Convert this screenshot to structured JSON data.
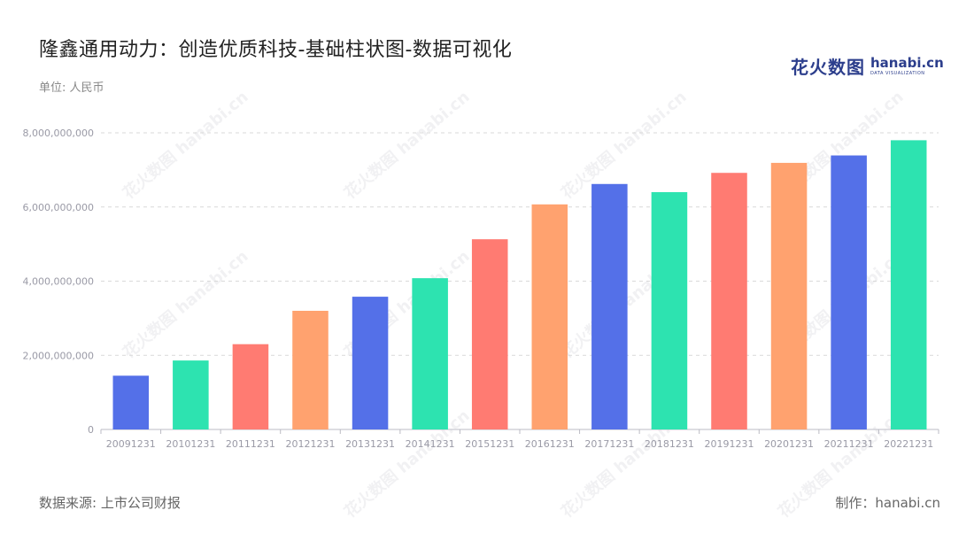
{
  "title": "隆鑫通用动力：创造优质科技-基础柱状图-数据可视化",
  "unit_label": "单位: 人民币",
  "logo": {
    "cn": "花火数图",
    "en": "hanabi.cn",
    "sub": "DATA VISUALIZATION"
  },
  "footer": {
    "source": "数据来源: 上市公司财报",
    "maker": "制作：hanabi.cn"
  },
  "watermark": "花火数图 hanabi.cn",
  "chart_data": {
    "type": "bar",
    "categories": [
      "20091231",
      "20101231",
      "20111231",
      "20121231",
      "20131231",
      "20141231",
      "20151231",
      "20161231",
      "20171231",
      "20181231",
      "20191231",
      "20201231",
      "20211231",
      "20221231"
    ],
    "values": [
      1450000000,
      1860000000,
      2300000000,
      3200000000,
      3580000000,
      4080000000,
      5130000000,
      6070000000,
      6620000000,
      6400000000,
      6920000000,
      7190000000,
      7390000000,
      7800000000
    ],
    "bar_colors": [
      "#5470e8",
      "#2de3b0",
      "#ff7b72",
      "#ffa26f",
      "#5470e8",
      "#2de3b0",
      "#ff7b72",
      "#ffa26f",
      "#5470e8",
      "#2de3b0",
      "#ff7b72",
      "#ffa26f",
      "#5470e8",
      "#2de3b0"
    ],
    "y_ticks": [
      "0",
      "2,000,000,000",
      "4,000,000,000",
      "6,000,000,000",
      "8,000,000,000"
    ],
    "ylim": [
      0,
      8000000000
    ],
    "grid": true,
    "xlabel": "",
    "ylabel": ""
  }
}
